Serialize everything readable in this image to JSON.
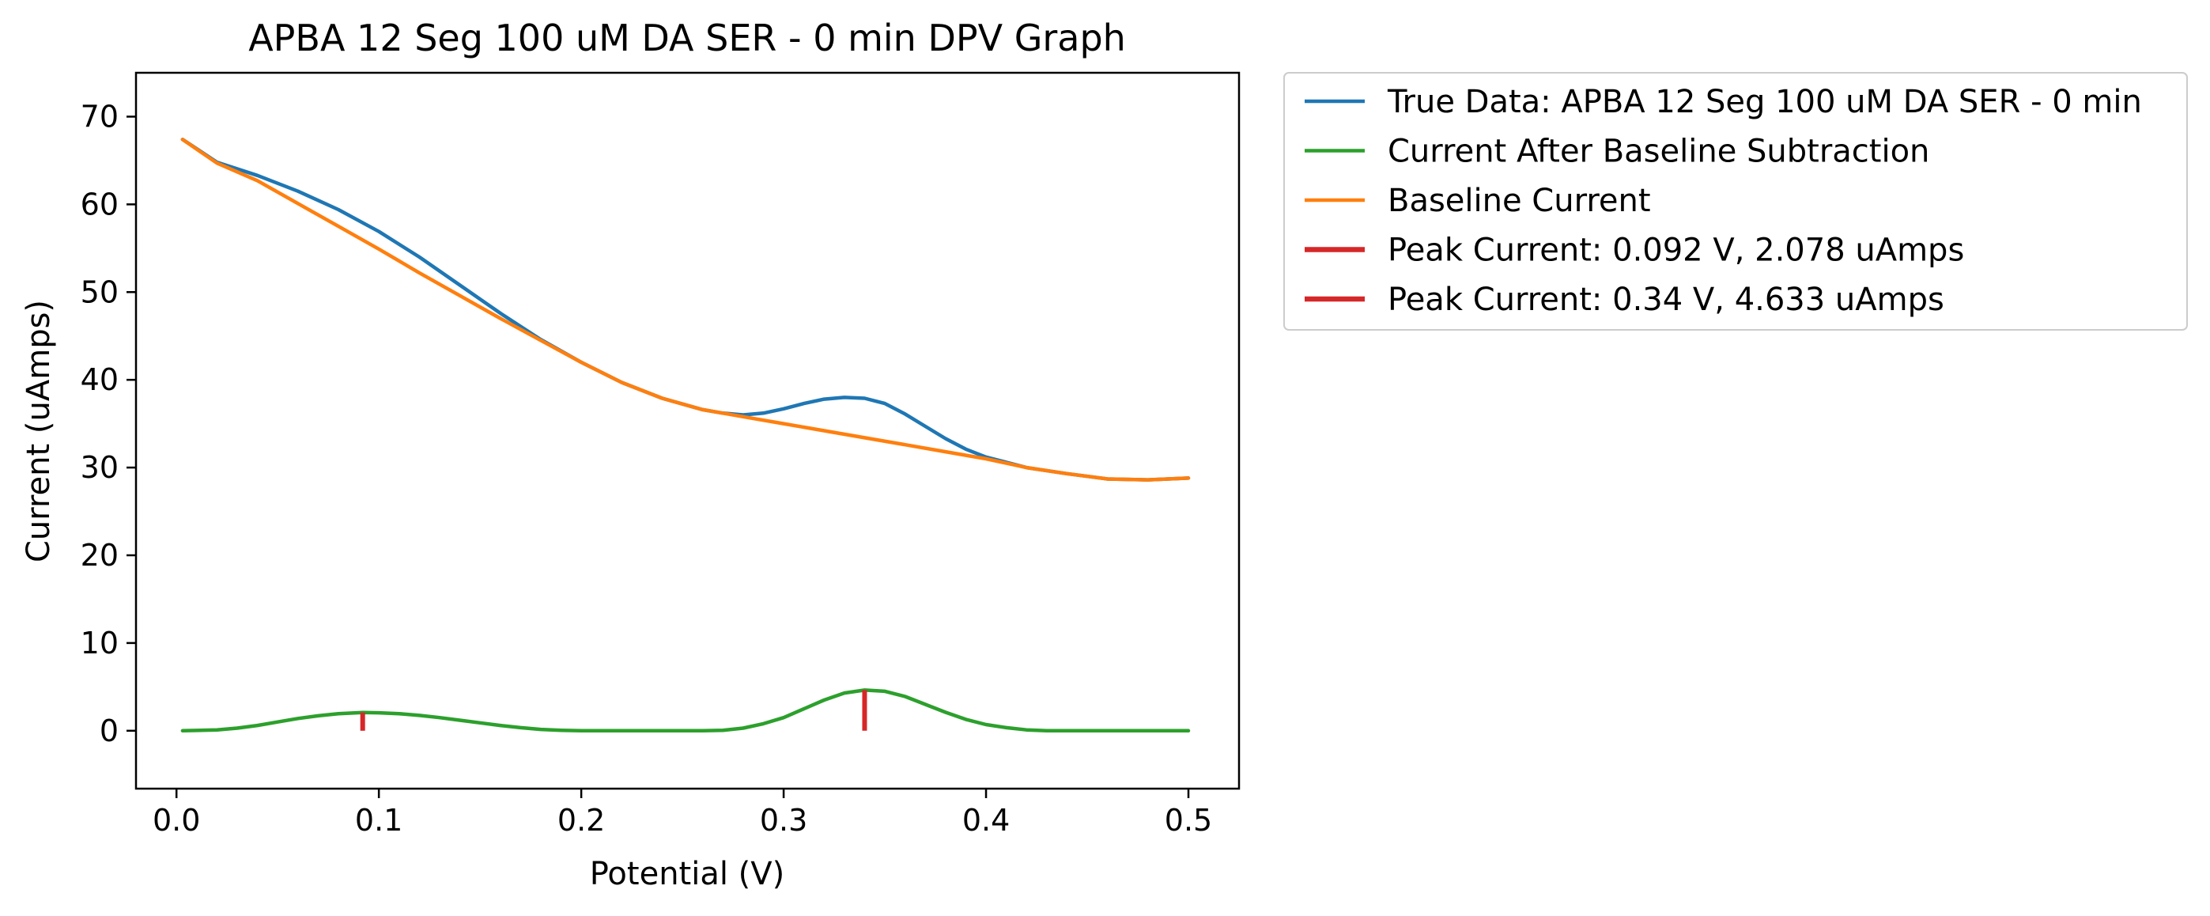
{
  "chart_data": {
    "type": "line",
    "title": "APBA 12 Seg 100 uM DA SER - 0 min DPV Graph",
    "xlabel": "Potential (V)",
    "ylabel": "Current (uAmps)",
    "xlim": [
      -0.02,
      0.525
    ],
    "ylim": [
      -6.6,
      75
    ],
    "xticks": [
      0.0,
      0.1,
      0.2,
      0.3,
      0.4,
      0.5
    ],
    "xtick_labels": [
      "0.0",
      "0.1",
      "0.2",
      "0.3",
      "0.4",
      "0.5"
    ],
    "yticks": [
      0,
      10,
      20,
      30,
      40,
      50,
      60,
      70
    ],
    "ytick_labels": [
      "0",
      "10",
      "20",
      "30",
      "40",
      "50",
      "60",
      "70"
    ],
    "grid": false,
    "legend_position": "outside-upper-right",
    "series": [
      {
        "name": "True Data: APBA 12 Seg 100 uM DA SER - 0 min",
        "color": "#1f77b4",
        "x": [
          0.003,
          0.02,
          0.04,
          0.06,
          0.08,
          0.1,
          0.12,
          0.14,
          0.16,
          0.18,
          0.2,
          0.22,
          0.24,
          0.26,
          0.27,
          0.28,
          0.29,
          0.3,
          0.31,
          0.32,
          0.33,
          0.34,
          0.35,
          0.36,
          0.37,
          0.38,
          0.39,
          0.4,
          0.41,
          0.42,
          0.44,
          0.46,
          0.48,
          0.5
        ],
        "y": [
          67.4,
          64.8,
          63.3,
          61.5,
          59.4,
          56.9,
          54.0,
          50.8,
          47.6,
          44.6,
          42.0,
          39.7,
          37.9,
          36.6,
          36.2,
          36.0,
          36.2,
          36.7,
          37.3,
          37.8,
          38.0,
          37.9,
          37.3,
          36.1,
          34.7,
          33.3,
          32.1,
          31.2,
          30.6,
          30.0,
          29.3,
          28.7,
          28.6,
          28.8
        ]
      },
      {
        "name": "Current After Baseline Subtraction",
        "color": "#2ca02c",
        "x": [
          0.003,
          0.02,
          0.03,
          0.04,
          0.05,
          0.06,
          0.07,
          0.08,
          0.092,
          0.1,
          0.11,
          0.12,
          0.13,
          0.14,
          0.15,
          0.16,
          0.17,
          0.18,
          0.19,
          0.2,
          0.22,
          0.24,
          0.26,
          0.27,
          0.28,
          0.29,
          0.3,
          0.31,
          0.32,
          0.33,
          0.34,
          0.35,
          0.36,
          0.37,
          0.38,
          0.39,
          0.4,
          0.41,
          0.42,
          0.43,
          0.45,
          0.47,
          0.5
        ],
        "y": [
          0.0,
          0.1,
          0.3,
          0.6,
          1.0,
          1.4,
          1.7,
          1.95,
          2.078,
          2.05,
          1.95,
          1.75,
          1.5,
          1.2,
          0.9,
          0.6,
          0.35,
          0.15,
          0.05,
          0.0,
          0.0,
          0.0,
          0.0,
          0.05,
          0.3,
          0.8,
          1.5,
          2.5,
          3.5,
          4.3,
          4.633,
          4.5,
          3.9,
          3.0,
          2.1,
          1.3,
          0.7,
          0.35,
          0.1,
          0.0,
          0.0,
          0.0,
          0.0
        ]
      },
      {
        "name": "Baseline Current",
        "color": "#ff7f0e",
        "x": [
          0.003,
          0.02,
          0.04,
          0.06,
          0.08,
          0.1,
          0.12,
          0.14,
          0.16,
          0.18,
          0.2,
          0.22,
          0.24,
          0.26,
          0.27,
          0.28,
          0.3,
          0.32,
          0.34,
          0.36,
          0.38,
          0.4,
          0.42,
          0.44,
          0.46,
          0.48,
          0.5
        ],
        "y": [
          67.4,
          64.7,
          62.7,
          60.1,
          57.5,
          54.9,
          52.2,
          49.6,
          47.0,
          44.5,
          42.0,
          39.7,
          37.9,
          36.6,
          36.2,
          35.8,
          35.0,
          34.2,
          33.4,
          32.6,
          31.8,
          31.0,
          30.0,
          29.3,
          28.7,
          28.6,
          28.8
        ]
      }
    ],
    "peaks": [
      {
        "name": "Peak Current: 0.092 V, 2.078 uAmps",
        "color": "#d62728",
        "x": 0.092,
        "y": 2.078
      },
      {
        "name": "Peak Current: 0.34 V, 4.633 uAmps",
        "color": "#d62728",
        "x": 0.34,
        "y": 4.633
      }
    ]
  }
}
